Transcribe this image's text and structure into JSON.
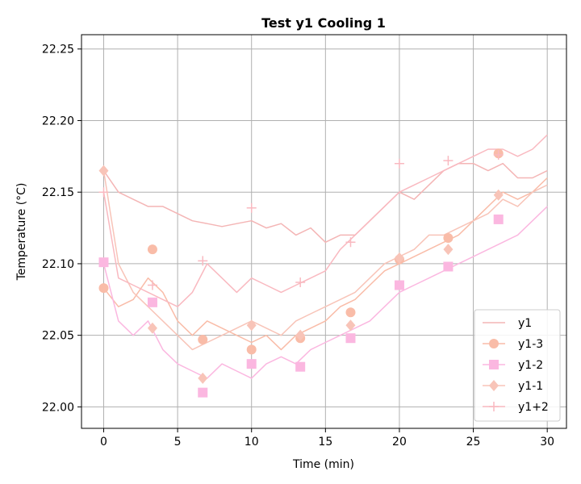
{
  "chart_data": {
    "type": "line",
    "title": "Test y1 Cooling 1",
    "xlabel": "Time (min)",
    "ylabel": "Temperature (°C)",
    "xlim": [
      -1.5,
      31.3
    ],
    "ylim": [
      21.985,
      22.26
    ],
    "xticks": [
      0,
      5,
      10,
      15,
      20,
      25,
      30
    ],
    "yticks": [
      22.0,
      22.05,
      22.1,
      22.15,
      22.2,
      22.25
    ],
    "ytick_labels": [
      "22.00",
      "22.05",
      "22.10",
      "22.15",
      "22.20",
      "22.25"
    ],
    "grid": true,
    "legend_position": "lower right",
    "series": [
      {
        "name": "y1",
        "color": "#f4b5b5",
        "marker": "none",
        "x": [
          0,
          1,
          2,
          3,
          4,
          5,
          6,
          7,
          8,
          9,
          10,
          11,
          12,
          13,
          14,
          15,
          16,
          17,
          18,
          19,
          20,
          21,
          22,
          23,
          24,
          25,
          26,
          27,
          28,
          29,
          30
        ],
        "y": [
          22.165,
          22.15,
          22.145,
          22.14,
          22.14,
          22.135,
          22.13,
          22.128,
          22.126,
          22.128,
          22.13,
          22.125,
          22.128,
          22.12,
          22.125,
          22.115,
          22.12,
          22.12,
          22.13,
          22.14,
          22.15,
          22.145,
          22.155,
          22.165,
          22.17,
          22.17,
          22.165,
          22.17,
          22.16,
          22.16,
          22.165
        ]
      },
      {
        "name": "y1-3",
        "color": "#f9bca8",
        "marker": "circle",
        "x": [
          0,
          1,
          2,
          3,
          4,
          5,
          6,
          7,
          8,
          9,
          10,
          11,
          12,
          13,
          14,
          15,
          16,
          17,
          18,
          19,
          20,
          21,
          22,
          23,
          24,
          25,
          26,
          27,
          28,
          29,
          30
        ],
        "y": [
          22.083,
          22.07,
          22.075,
          22.09,
          22.08,
          22.06,
          22.05,
          22.06,
          22.055,
          22.05,
          22.045,
          22.05,
          22.04,
          22.05,
          22.055,
          22.06,
          22.07,
          22.075,
          22.085,
          22.095,
          22.1,
          22.105,
          22.11,
          22.115,
          22.12,
          22.13,
          22.14,
          22.15,
          22.145,
          22.15,
          22.16
        ],
        "marker_x": [
          0,
          3.3,
          6.7,
          10,
          13.3,
          16.7,
          20,
          23.3,
          26.7
        ],
        "marker_y": [
          22.083,
          22.11,
          22.047,
          22.04,
          22.048,
          22.066,
          22.103,
          22.118,
          22.177
        ]
      },
      {
        "name": "y1-2",
        "color": "#fbb7e0",
        "marker": "square",
        "x": [
          0,
          1,
          2,
          3,
          4,
          5,
          6,
          7,
          8,
          9,
          10,
          11,
          12,
          13,
          14,
          15,
          16,
          17,
          18,
          19,
          20,
          21,
          22,
          23,
          24,
          25,
          26,
          27,
          28,
          29,
          30
        ],
        "y": [
          22.1,
          22.06,
          22.05,
          22.06,
          22.04,
          22.03,
          22.025,
          22.02,
          22.03,
          22.025,
          22.02,
          22.03,
          22.035,
          22.03,
          22.04,
          22.045,
          22.05,
          22.055,
          22.06,
          22.07,
          22.08,
          22.085,
          22.09,
          22.095,
          22.1,
          22.105,
          22.11,
          22.115,
          22.12,
          22.13,
          22.14
        ],
        "marker_x": [
          0,
          3.3,
          6.7,
          10,
          13.3,
          16.7,
          20,
          23.3,
          26.7
        ],
        "marker_y": [
          22.101,
          22.073,
          22.01,
          22.03,
          22.028,
          22.048,
          22.085,
          22.098,
          22.131
        ]
      },
      {
        "name": "y1-1",
        "color": "#f8c4b8",
        "marker": "diamond",
        "x": [
          0,
          1,
          2,
          3,
          4,
          5,
          6,
          7,
          8,
          9,
          10,
          11,
          12,
          13,
          14,
          15,
          16,
          17,
          18,
          19,
          20,
          21,
          22,
          23,
          24,
          25,
          26,
          27,
          28,
          29,
          30
        ],
        "y": [
          22.165,
          22.1,
          22.08,
          22.07,
          22.06,
          22.05,
          22.04,
          22.045,
          22.05,
          22.055,
          22.06,
          22.055,
          22.05,
          22.06,
          22.065,
          22.07,
          22.075,
          22.08,
          22.09,
          22.1,
          22.105,
          22.11,
          22.12,
          22.12,
          22.125,
          22.13,
          22.135,
          22.145,
          22.14,
          22.15,
          22.155
        ],
        "marker_x": [
          0,
          3.3,
          6.7,
          10,
          13.3,
          16.7,
          20,
          23.3,
          26.7
        ],
        "marker_y": [
          22.165,
          22.055,
          22.02,
          22.057,
          22.05,
          22.057,
          22.104,
          22.11,
          22.148
        ]
      },
      {
        "name": "y1+2",
        "color": "#f9b9c0",
        "marker": "plus",
        "x": [
          0,
          1,
          2,
          3,
          4,
          5,
          6,
          7,
          8,
          9,
          10,
          11,
          12,
          13,
          14,
          15,
          16,
          17,
          18,
          19,
          20,
          21,
          22,
          23,
          24,
          25,
          26,
          27,
          28,
          29,
          30
        ],
        "y": [
          22.15,
          22.09,
          22.085,
          22.08,
          22.075,
          22.07,
          22.08,
          22.1,
          22.09,
          22.08,
          22.09,
          22.085,
          22.08,
          22.085,
          22.09,
          22.095,
          22.11,
          22.12,
          22.13,
          22.14,
          22.15,
          22.155,
          22.16,
          22.165,
          22.17,
          22.175,
          22.18,
          22.18,
          22.175,
          22.18,
          22.19
        ],
        "marker_x": [
          0,
          3.3,
          6.7,
          10,
          13.3,
          16.7,
          20,
          23.3,
          26.7
        ],
        "marker_y": [
          22.15,
          22.085,
          22.102,
          22.139,
          22.087,
          22.115,
          22.17,
          22.172,
          22.176
        ]
      }
    ]
  }
}
